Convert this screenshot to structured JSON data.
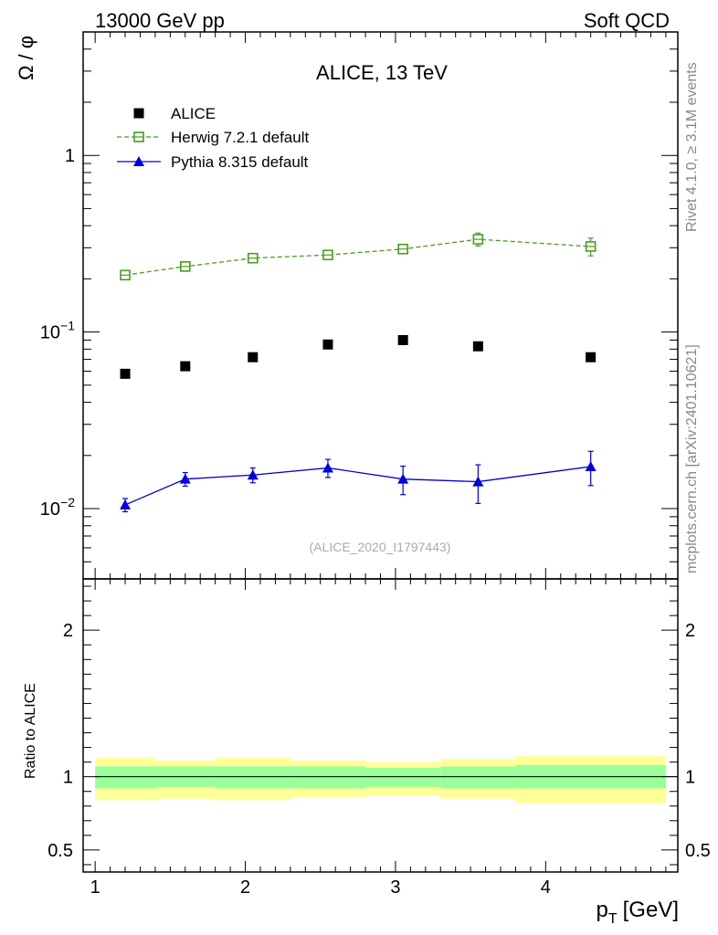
{
  "header": {
    "left": "13000 GeV pp",
    "right": "Soft QCD"
  },
  "side": {
    "rivet": "Rivet 4.1.0, ≥ 3.1M events",
    "mcplots": "mcplots.cern.ch [arXiv:2401.10621]"
  },
  "colors": {
    "data": "#000000",
    "herwig": "#4a9b1f",
    "pythia": "#0000dd",
    "band_outer": "#ffff99",
    "band_inner": "#99ff99"
  },
  "chart_data": [
    {
      "type": "scatter",
      "panel": "main",
      "title": "ALICE, 13 TeV",
      "ylabel": "Ω / φ",
      "yscale": "log",
      "ylim": [
        0.004,
        5
      ],
      "xlim": [
        0.92,
        4.88
      ],
      "ytick_labels": [
        {
          "value": 1,
          "base": "1",
          "exp": ""
        },
        {
          "value": 0.1,
          "base": "10",
          "exp": "−1"
        },
        {
          "value": 0.01,
          "base": "10",
          "exp": "−2"
        }
      ],
      "annotation": "(ALICE_2020_I1797443)",
      "series": [
        {
          "name": "ALICE",
          "style": "data",
          "x": [
            1.2,
            1.6,
            2.05,
            2.55,
            3.05,
            3.55,
            4.3
          ],
          "values": [
            0.058,
            0.064,
            0.072,
            0.085,
            0.09,
            0.083,
            0.072
          ],
          "errors": [
            0,
            0,
            0,
            0,
            0,
            0,
            0
          ]
        },
        {
          "name": "Herwig 7.2.1 default",
          "style": "herwig",
          "x": [
            1.2,
            1.6,
            2.05,
            2.55,
            3.05,
            3.55,
            4.3
          ],
          "values": [
            0.21,
            0.235,
            0.262,
            0.273,
            0.295,
            0.335,
            0.305
          ],
          "errors": [
            0.006,
            0.007,
            0.009,
            0.01,
            0.015,
            0.028,
            0.035
          ]
        },
        {
          "name": "Pythia 8.315 default",
          "style": "pythia",
          "x": [
            1.2,
            1.6,
            2.05,
            2.55,
            3.05,
            3.55,
            4.3
          ],
          "values": [
            0.0105,
            0.0147,
            0.0155,
            0.017,
            0.0147,
            0.0142,
            0.0173
          ],
          "errors": [
            0.0009,
            0.0013,
            0.0015,
            0.002,
            0.0027,
            0.0035,
            0.0038
          ]
        }
      ]
    },
    {
      "type": "area",
      "panel": "ratio",
      "ylabel": "Ratio to ALICE",
      "xlabel": "p_T [GeV]",
      "xlabel_main": "p",
      "xlabel_sub": "T",
      "xlabel_unit": "[GeV]",
      "ylim": [
        0.35,
        2.35
      ],
      "xlim": [
        0.92,
        4.88
      ],
      "xtick_labels": [
        "1",
        "2",
        "3",
        "4"
      ],
      "xtick_values": [
        1,
        2,
        3,
        4
      ],
      "ytick_labels": [
        "0.5",
        "1",
        "2"
      ],
      "ytick_values": [
        0.5,
        1,
        2
      ],
      "bins": [
        {
          "lo": 1.0,
          "hi": 1.4,
          "stat_lo": 0.92,
          "stat_hi": 1.07,
          "tot_lo": 0.84,
          "tot_hi": 1.13
        },
        {
          "lo": 1.4,
          "hi": 1.8,
          "stat_lo": 0.93,
          "stat_hi": 1.07,
          "tot_lo": 0.85,
          "tot_hi": 1.11
        },
        {
          "lo": 1.8,
          "hi": 2.3,
          "stat_lo": 0.92,
          "stat_hi": 1.07,
          "tot_lo": 0.84,
          "tot_hi": 1.13
        },
        {
          "lo": 2.3,
          "hi": 2.8,
          "stat_lo": 0.92,
          "stat_hi": 1.07,
          "tot_lo": 0.86,
          "tot_hi": 1.11
        },
        {
          "lo": 2.8,
          "hi": 3.3,
          "stat_lo": 0.93,
          "stat_hi": 1.06,
          "tot_lo": 0.87,
          "tot_hi": 1.1
        },
        {
          "lo": 3.3,
          "hi": 3.8,
          "stat_lo": 0.92,
          "stat_hi": 1.07,
          "tot_lo": 0.85,
          "tot_hi": 1.12
        },
        {
          "lo": 3.8,
          "hi": 4.8,
          "stat_lo": 0.92,
          "stat_hi": 1.08,
          "tot_lo": 0.82,
          "tot_hi": 1.14
        }
      ]
    }
  ]
}
